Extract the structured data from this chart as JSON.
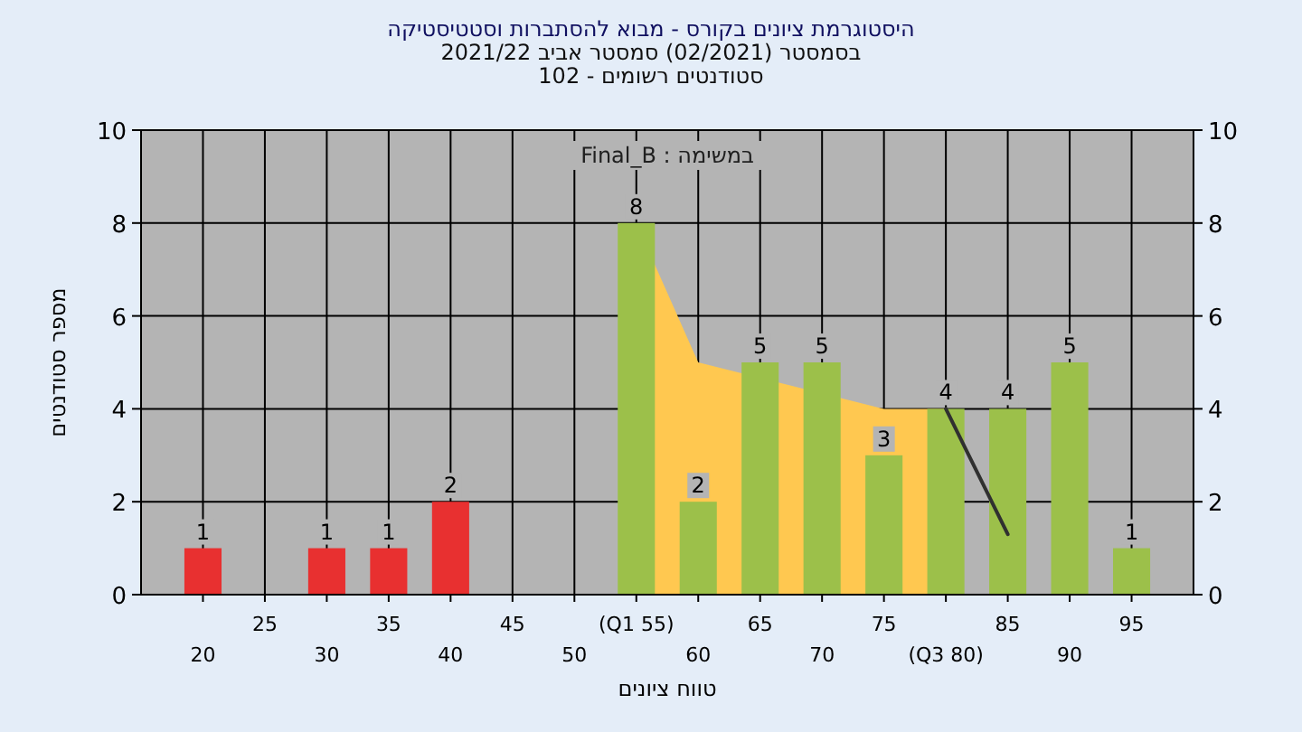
{
  "chart_data": {
    "type": "bar",
    "title": "היסטוגרמת ציונים בקורס - מבוא להסתברות וסטטיסטיקה",
    "subtitle": "בסמסטר  (02/2021)  סמסטר אביב 2021/22\nסטודנטים רשומים - 102",
    "xlabel": "טווח ציונים",
    "ylabel": "מספר סטודנטים",
    "annotations": [
      "במשימה : Final_B"
    ],
    "categories": [
      "20",
      "25",
      "30",
      "35",
      "40",
      "45",
      "50",
      "(Q1 55)",
      "60",
      "65",
      "70",
      "75",
      "(Q3 80)",
      "85",
      "90",
      "95"
    ],
    "series": [
      {
        "type": "area",
        "color": "#ffc850",
        "values": [
          null,
          null,
          null,
          null,
          null,
          null,
          null,
          8,
          5,
          null,
          null,
          4,
          4,
          null,
          null,
          null
        ]
      },
      {
        "type": "bar",
        "colors": [
          "#e83030",
          "#e83030",
          "#e83030",
          "#e83030",
          "#e83030",
          "#e83030",
          "#e83030",
          "#9cc04a",
          "#9cc04a",
          "#9cc04a",
          "#9cc04a",
          "#9cc04a",
          "#9cc04a",
          "#9cc04a",
          "#9cc04a",
          "#9cc04a"
        ],
        "values": [
          1,
          0,
          1,
          1,
          2,
          0,
          0,
          8,
          2,
          5,
          5,
          3,
          4,
          4,
          5,
          1
        ],
        "value_labels": [
          "1",
          null,
          "1",
          "1",
          "2",
          null,
          null,
          "8",
          "2",
          "5",
          "5",
          "3",
          "4",
          "4",
          "5",
          "1"
        ]
      },
      {
        "type": "line",
        "color": "#303030",
        "values": [
          null,
          null,
          null,
          null,
          null,
          null,
          null,
          null,
          null,
          null,
          null,
          null,
          4,
          1.3,
          null,
          null
        ]
      }
    ],
    "ylim": [
      0,
      10
    ],
    "yticks": [
      0,
      2,
      4,
      6,
      8,
      10
    ],
    "y2lim": [
      0,
      10
    ],
    "y2ticks": [
      0,
      2,
      4,
      6,
      8,
      10
    ],
    "grid": true
  }
}
